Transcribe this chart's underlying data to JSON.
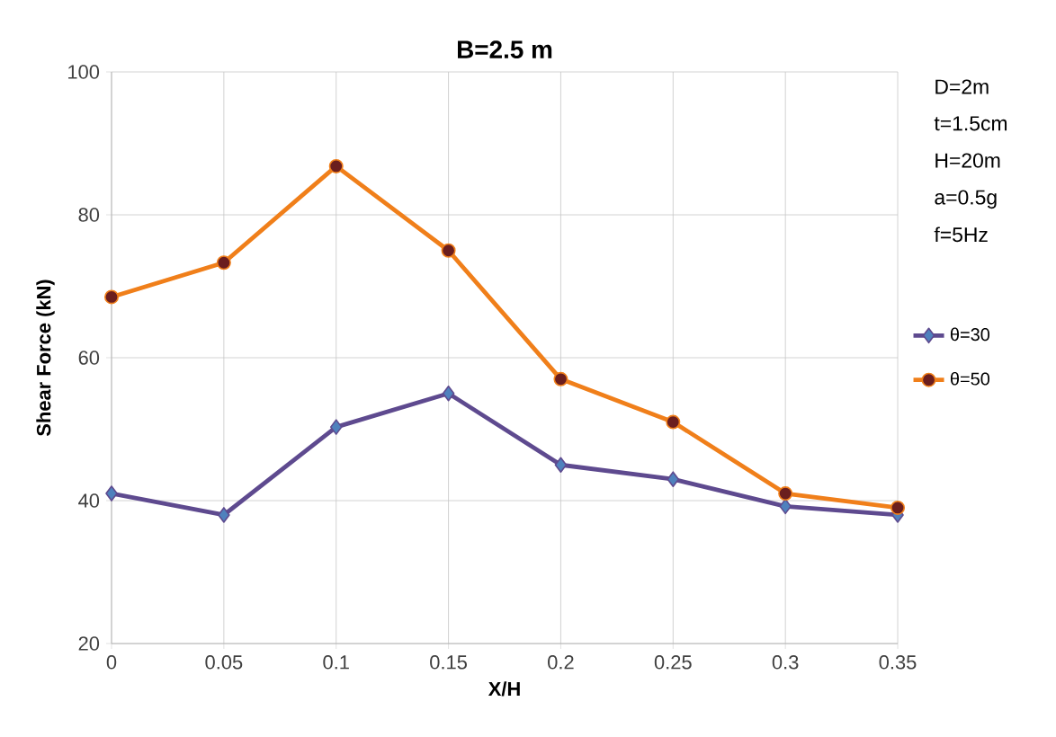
{
  "chart_data": {
    "type": "line",
    "title": "B=2.5 m",
    "xlabel": "X/H",
    "ylabel": "Shear Force (kN)",
    "x": [
      0,
      0.05,
      0.1,
      0.15,
      0.2,
      0.25,
      0.3,
      0.35
    ],
    "series": [
      {
        "name": "θ=30",
        "color": "#5e4a8f",
        "marker": "diamond",
        "values": [
          41,
          38,
          50.3,
          55,
          45,
          43,
          39.2,
          38
        ]
      },
      {
        "name": "θ=50",
        "color": "#f07f1a",
        "marker": "circle",
        "values": [
          68.5,
          73.3,
          86.8,
          75,
          57,
          51,
          41,
          39
        ]
      }
    ],
    "xlim": [
      0,
      0.35
    ],
    "xticks": [
      0,
      0.05,
      0.1,
      0.15,
      0.2,
      0.25,
      0.3,
      0.35
    ],
    "ylim": [
      20,
      100
    ],
    "yticks": [
      20,
      40,
      60,
      80,
      100
    ],
    "grid": true,
    "legend": "right",
    "line_style": "solid",
    "annotations": [
      "D=2m",
      "t=1.5cm",
      "H=20m",
      "a=0.5g",
      "f=5Hz"
    ]
  }
}
